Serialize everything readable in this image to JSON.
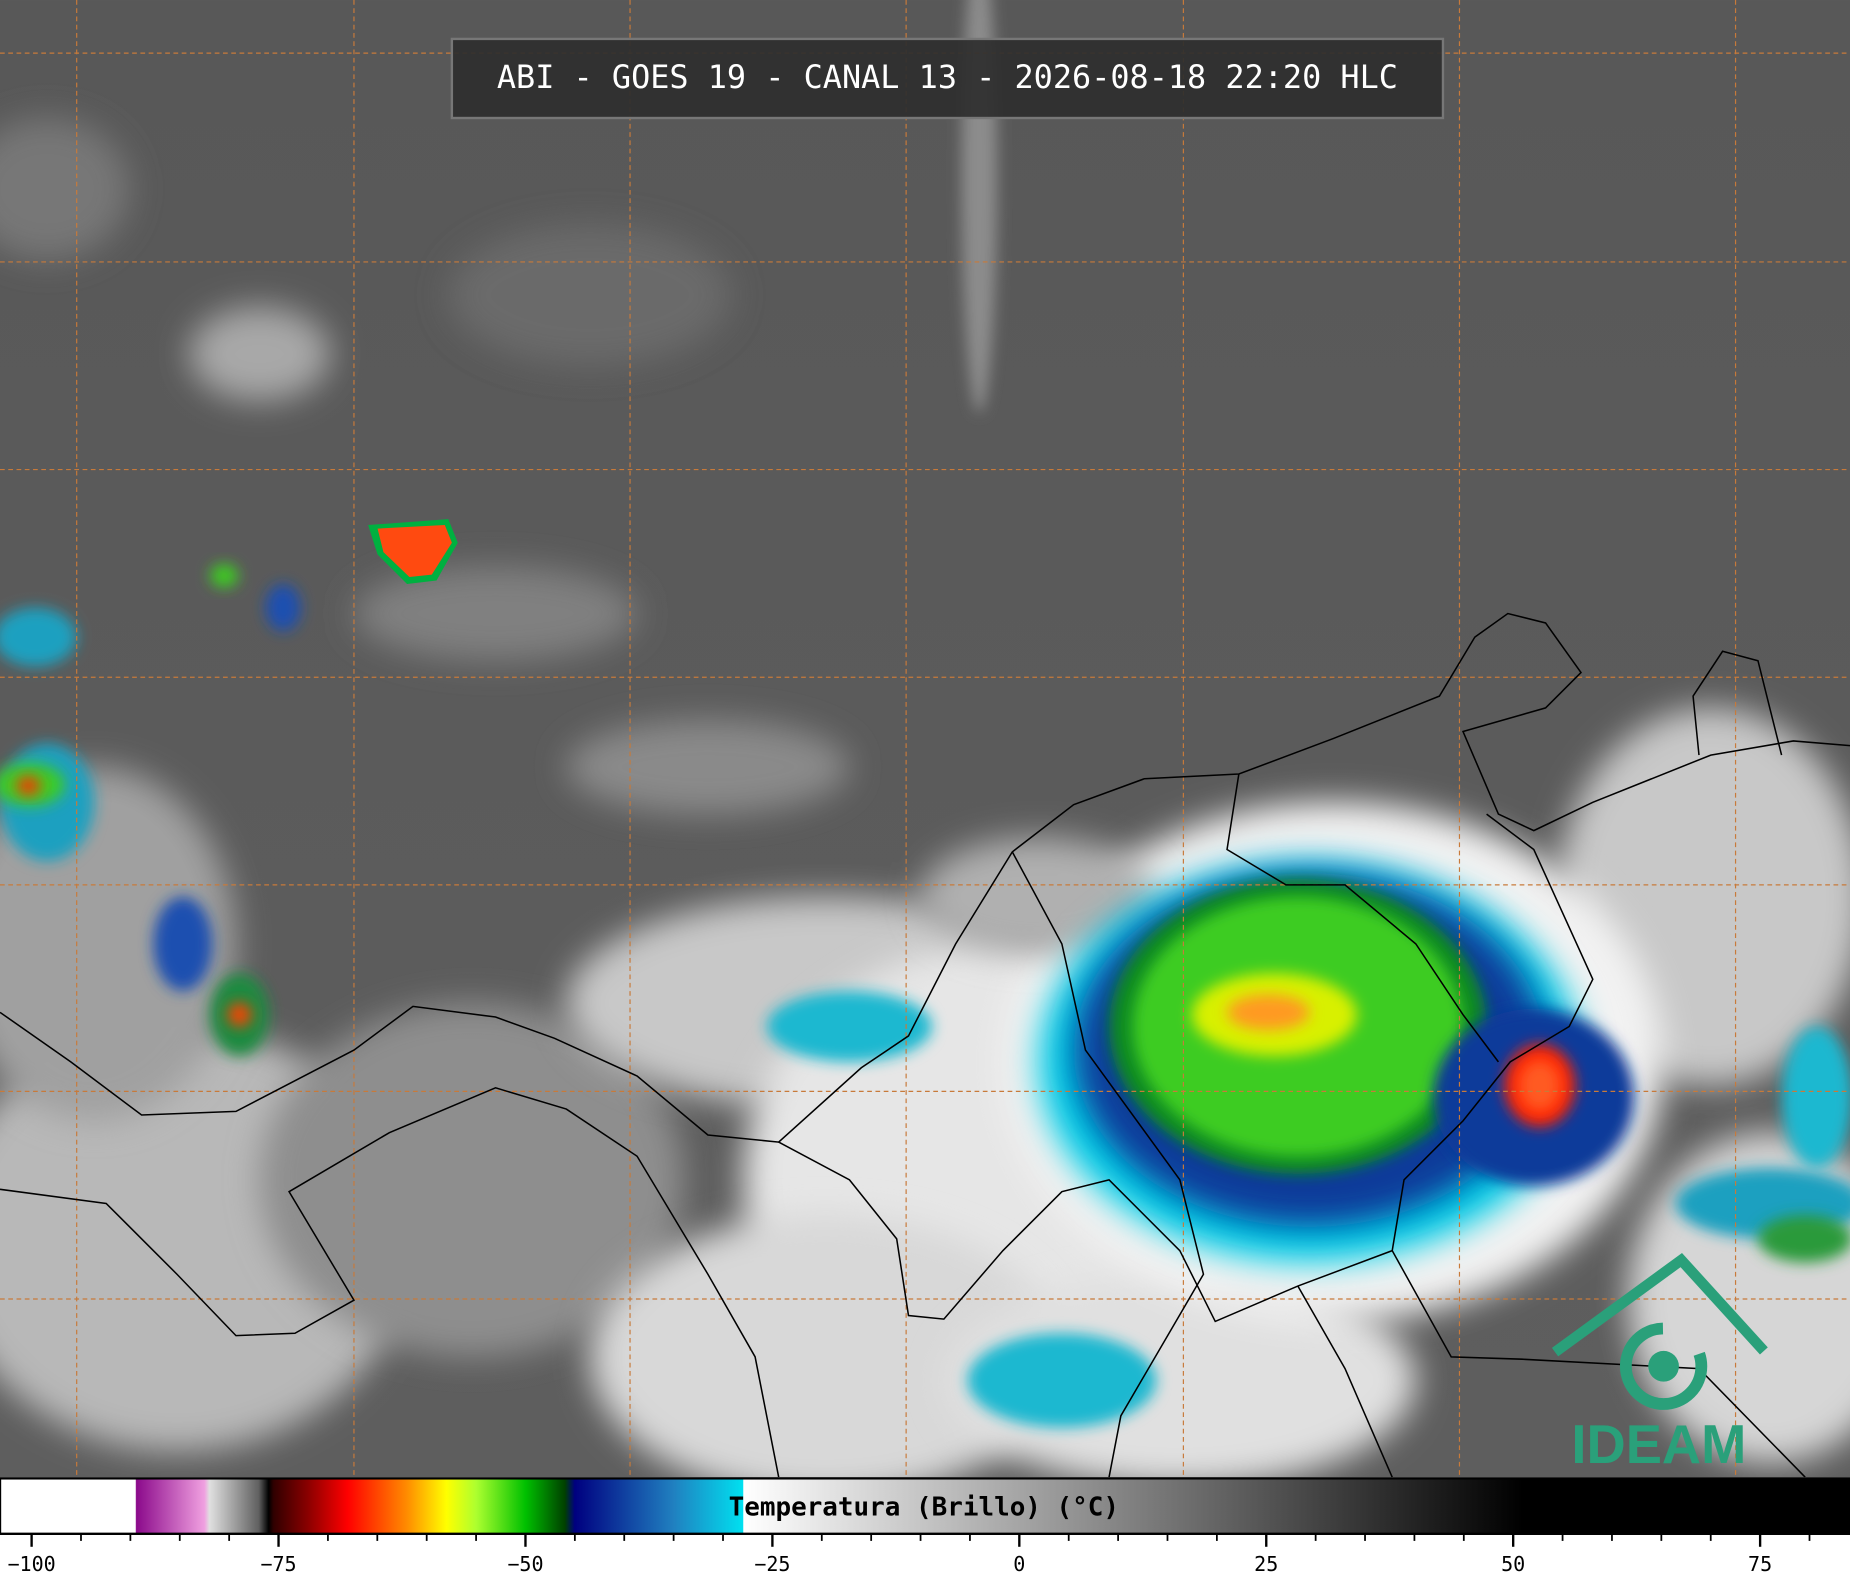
{
  "title": "ABI - GOES 19 - CANAL 13 - 2026-08-18 22:20 HLC",
  "logo": "IDEAM",
  "colorbar": {
    "label": "Temperatura (Brillo) (°C)",
    "range": [
      -103.2,
      84.1
    ],
    "ticks": [
      {
        "value": -100,
        "label": "−100"
      },
      {
        "value": -75,
        "label": "−75"
      },
      {
        "value": -50,
        "label": "−50"
      },
      {
        "value": -25,
        "label": "−25"
      },
      0,
      25,
      50,
      75
    ],
    "minor_ticks": [
      -95,
      -90,
      -85,
      -80,
      -70,
      -65,
      -60,
      -55,
      -45,
      -40,
      -35,
      -30,
      -20,
      -15,
      -10,
      -5,
      5,
      10,
      15,
      20,
      30,
      35,
      40,
      45,
      55,
      60,
      65,
      70,
      80
    ],
    "stops": [
      {
        "value": -103.2,
        "color": "#ffffff"
      },
      {
        "value": -89.5,
        "color": "#ffffff"
      },
      {
        "value": -89.4,
        "color": "#8b0a8b"
      },
      {
        "value": -82.5,
        "color": "#f0a0e0"
      },
      {
        "value": -82,
        "color": "#e0e0e0"
      },
      {
        "value": -77,
        "color": "#606060"
      },
      {
        "value": -76,
        "color": "#000000"
      },
      {
        "value": -75.5,
        "color": "#300000"
      },
      {
        "value": -72,
        "color": "#8b0000"
      },
      {
        "value": -68,
        "color": "#ff0000"
      },
      {
        "value": -62,
        "color": "#ff8c00"
      },
      {
        "value": -58,
        "color": "#ffff00"
      },
      {
        "value": -55,
        "color": "#adff2f"
      },
      {
        "value": -50,
        "color": "#00c000"
      },
      {
        "value": -46,
        "color": "#004000"
      },
      {
        "value": -45,
        "color": "#000080"
      },
      {
        "value": -40,
        "color": "#1040a0"
      },
      {
        "value": -35,
        "color": "#2080c0"
      },
      {
        "value": -28,
        "color": "#00e0f0"
      },
      {
        "value": -27.9,
        "color": "#ffffff"
      },
      {
        "value": 51,
        "color": "#000000"
      },
      {
        "value": 84.1,
        "color": "#000000"
      }
    ]
  }
}
